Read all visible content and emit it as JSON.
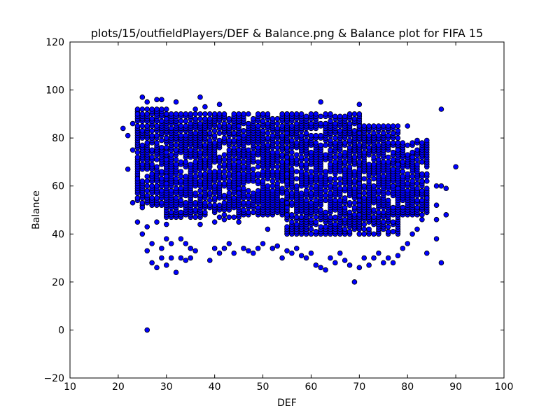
{
  "chart_data": {
    "type": "scatter",
    "title": "plots/15/outfieldPlayers/DEF & Balance.png & Balance plot for FIFA 15",
    "xlabel": "DEF",
    "ylabel": "Balance",
    "xlim": [
      10,
      100
    ],
    "ylim": [
      -20,
      120
    ],
    "xticks": [
      10,
      20,
      30,
      40,
      50,
      60,
      70,
      80,
      90,
      100
    ],
    "yticks": [
      -20,
      0,
      20,
      40,
      60,
      80,
      100,
      120
    ],
    "grid": false,
    "legend": "none",
    "marker_color": "#0000ff",
    "marker_edge_color": "#000000",
    "density_regions": [
      {
        "x": [
          24,
          30
        ],
        "y": [
          52,
          92
        ]
      },
      {
        "x": [
          30,
          45
        ],
        "y": [
          47,
          90
        ]
      },
      {
        "x": [
          45,
          55
        ],
        "y": [
          48,
          90
        ]
      },
      {
        "x": [
          55,
          70
        ],
        "y": [
          40,
          90
        ]
      },
      {
        "x": [
          70,
          78
        ],
        "y": [
          40,
          85
        ]
      },
      {
        "x": [
          78,
          84
        ],
        "y": [
          48,
          78
        ]
      }
    ],
    "points": [
      [
        21,
        84
      ],
      [
        22,
        81
      ],
      [
        22,
        67
      ],
      [
        23,
        53
      ],
      [
        23,
        75
      ],
      [
        23,
        86
      ],
      [
        24,
        90
      ],
      [
        24,
        63
      ],
      [
        24,
        45
      ],
      [
        25,
        97
      ],
      [
        25,
        51
      ],
      [
        25,
        40
      ],
      [
        26,
        0
      ],
      [
        26,
        33
      ],
      [
        26,
        43
      ],
      [
        26,
        95
      ],
      [
        27,
        36
      ],
      [
        27,
        28
      ],
      [
        28,
        26
      ],
      [
        28,
        96
      ],
      [
        28,
        45
      ],
      [
        29,
        30
      ],
      [
        29,
        34
      ],
      [
        29,
        96
      ],
      [
        30,
        27
      ],
      [
        30,
        38
      ],
      [
        30,
        44
      ],
      [
        31,
        30
      ],
      [
        31,
        36
      ],
      [
        32,
        24
      ],
      [
        32,
        95
      ],
      [
        33,
        30
      ],
      [
        33,
        38
      ],
      [
        34,
        29
      ],
      [
        34,
        36
      ],
      [
        35,
        30
      ],
      [
        35,
        34
      ],
      [
        36,
        92
      ],
      [
        36,
        33
      ],
      [
        37,
        97
      ],
      [
        37,
        44
      ],
      [
        38,
        93
      ],
      [
        39,
        29
      ],
      [
        40,
        34
      ],
      [
        40,
        45
      ],
      [
        41,
        32
      ],
      [
        41,
        94
      ],
      [
        42,
        34
      ],
      [
        42,
        46
      ],
      [
        43,
        36
      ],
      [
        44,
        32
      ],
      [
        45,
        45
      ],
      [
        46,
        34
      ],
      [
        47,
        33
      ],
      [
        48,
        32
      ],
      [
        49,
        34
      ],
      [
        50,
        36
      ],
      [
        51,
        42
      ],
      [
        52,
        34
      ],
      [
        53,
        35
      ],
      [
        54,
        30
      ],
      [
        55,
        33
      ],
      [
        56,
        32
      ],
      [
        57,
        34
      ],
      [
        58,
        31
      ],
      [
        59,
        30
      ],
      [
        60,
        32
      ],
      [
        61,
        27
      ],
      [
        62,
        26
      ],
      [
        62,
        95
      ],
      [
        63,
        25
      ],
      [
        64,
        30
      ],
      [
        65,
        28
      ],
      [
        66,
        32
      ],
      [
        67,
        29
      ],
      [
        68,
        27
      ],
      [
        69,
        20
      ],
      [
        70,
        26
      ],
      [
        70,
        94
      ],
      [
        71,
        30
      ],
      [
        72,
        27
      ],
      [
        73,
        30
      ],
      [
        74,
        32
      ],
      [
        75,
        28
      ],
      [
        76,
        30
      ],
      [
        77,
        28
      ],
      [
        78,
        31
      ],
      [
        79,
        34
      ],
      [
        80,
        85
      ],
      [
        80,
        36
      ],
      [
        81,
        40
      ],
      [
        81,
        72
      ],
      [
        82,
        79
      ],
      [
        82,
        42
      ],
      [
        83,
        70
      ],
      [
        83,
        46
      ],
      [
        84,
        79
      ],
      [
        84,
        32
      ],
      [
        84,
        55
      ],
      [
        84,
        65
      ],
      [
        86,
        60
      ],
      [
        86,
        46
      ],
      [
        86,
        38
      ],
      [
        86,
        52
      ],
      [
        87,
        92
      ],
      [
        87,
        60
      ],
      [
        87,
        28
      ],
      [
        88,
        59
      ],
      [
        88,
        48
      ],
      [
        90,
        68
      ]
    ]
  }
}
